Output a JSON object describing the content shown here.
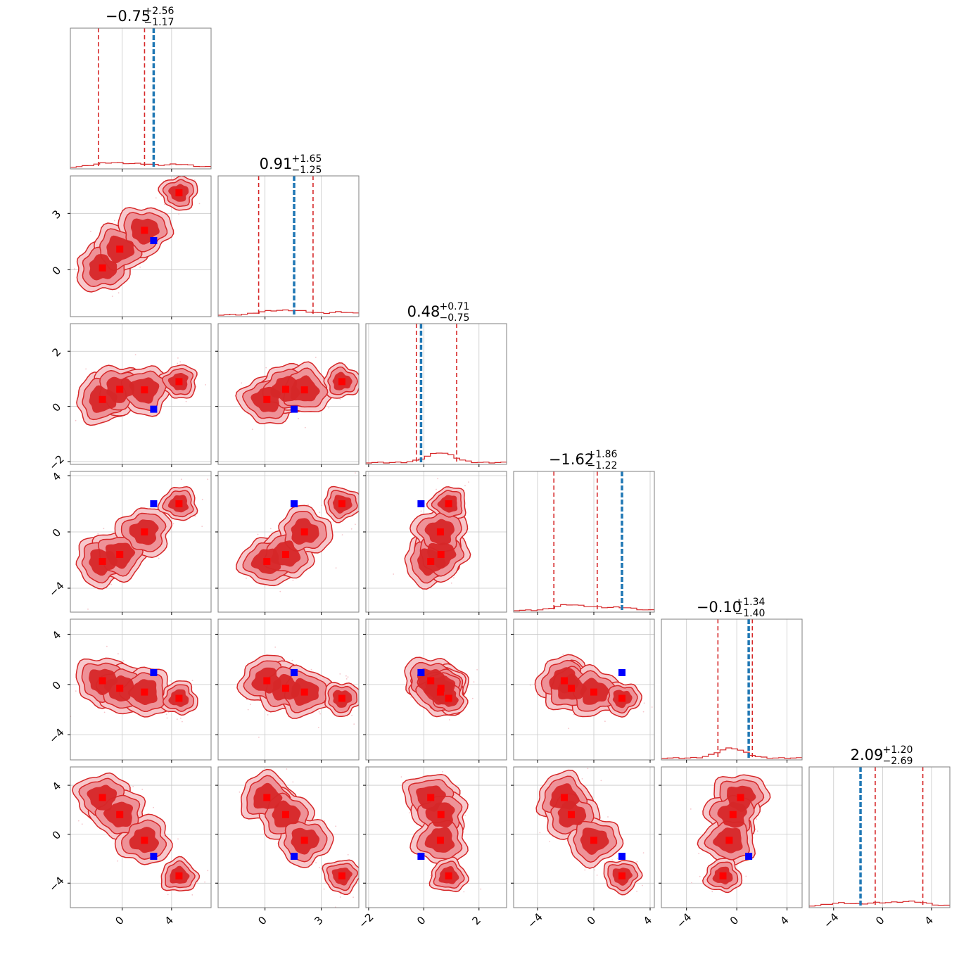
{
  "chart_data": {
    "type": "corner",
    "parameters": [
      {
        "title_median": "−0.75",
        "title_plus": "+2.56",
        "title_minus": "−1.17",
        "range": [
          -4.2,
          7.2
        ],
        "ticks": [
          0,
          4
        ],
        "tick_labels": [
          "0",
          "4"
        ],
        "quantiles": [
          -1.92,
          1.81
        ],
        "truth": 2.55,
        "modes": [
          -1.6,
          -0.2,
          1.8,
          4.6
        ]
      },
      {
        "title_median": "0.91",
        "title_plus": "+1.65",
        "title_minus": "−1.25",
        "range": [
          -2.5,
          5.0
        ],
        "ticks": [
          0,
          3
        ],
        "tick_labels": [
          "0",
          "3"
        ],
        "quantiles": [
          -0.34,
          2.56
        ],
        "truth": 1.55,
        "modes": [
          0.1,
          1.1,
          2.1,
          4.1
        ]
      },
      {
        "title_median": "0.48",
        "title_plus": "+0.71",
        "title_minus": "−0.75",
        "range": [
          -2.1,
          3.0
        ],
        "ticks": [
          -2,
          0,
          2
        ],
        "tick_labels": [
          "−2",
          "0",
          "2"
        ],
        "quantiles": [
          -0.27,
          1.19
        ],
        "truth": -0.1,
        "modes": [
          0.25,
          0.62,
          0.6,
          0.9
        ]
      },
      {
        "title_median": "−1.62",
        "title_plus": "+1.86",
        "title_minus": "−1.22",
        "range": [
          -5.7,
          4.3
        ],
        "ticks": [
          -4,
          0,
          4
        ],
        "tick_labels": [
          "−4",
          "0",
          "4"
        ],
        "quantiles": [
          -2.84,
          0.24
        ],
        "truth": 2.0,
        "modes": [
          -2.1,
          -1.6,
          0.0,
          2.0
        ]
      },
      {
        "title_median": "−0.10",
        "title_plus": "+1.34",
        "title_minus": "−1.40",
        "range": [
          -6.0,
          5.2
        ],
        "ticks": [
          -4,
          0,
          4
        ],
        "tick_labels": [
          "−4",
          "0",
          "4"
        ],
        "quantiles": [
          -1.5,
          1.24
        ],
        "truth": 0.95,
        "modes": [
          0.3,
          -0.3,
          -0.6,
          -1.1
        ]
      },
      {
        "title_median": "2.09",
        "title_plus": "+1.20",
        "title_minus": "−2.69",
        "range": [
          -6.0,
          5.5
        ],
        "ticks": [
          -4,
          0,
          4
        ],
        "tick_labels": [
          "−4",
          "0",
          "4"
        ],
        "quantiles": [
          -0.6,
          3.29
        ],
        "truth": -1.8,
        "modes": [
          3.0,
          1.6,
          -0.5,
          -3.4
        ]
      }
    ],
    "colors": {
      "posterior": "#d62728",
      "truth_line": "#1f77b4",
      "truth_marker": "#0000ff",
      "mode_marker": "#ff0000"
    },
    "grid": true,
    "legend": "none"
  }
}
